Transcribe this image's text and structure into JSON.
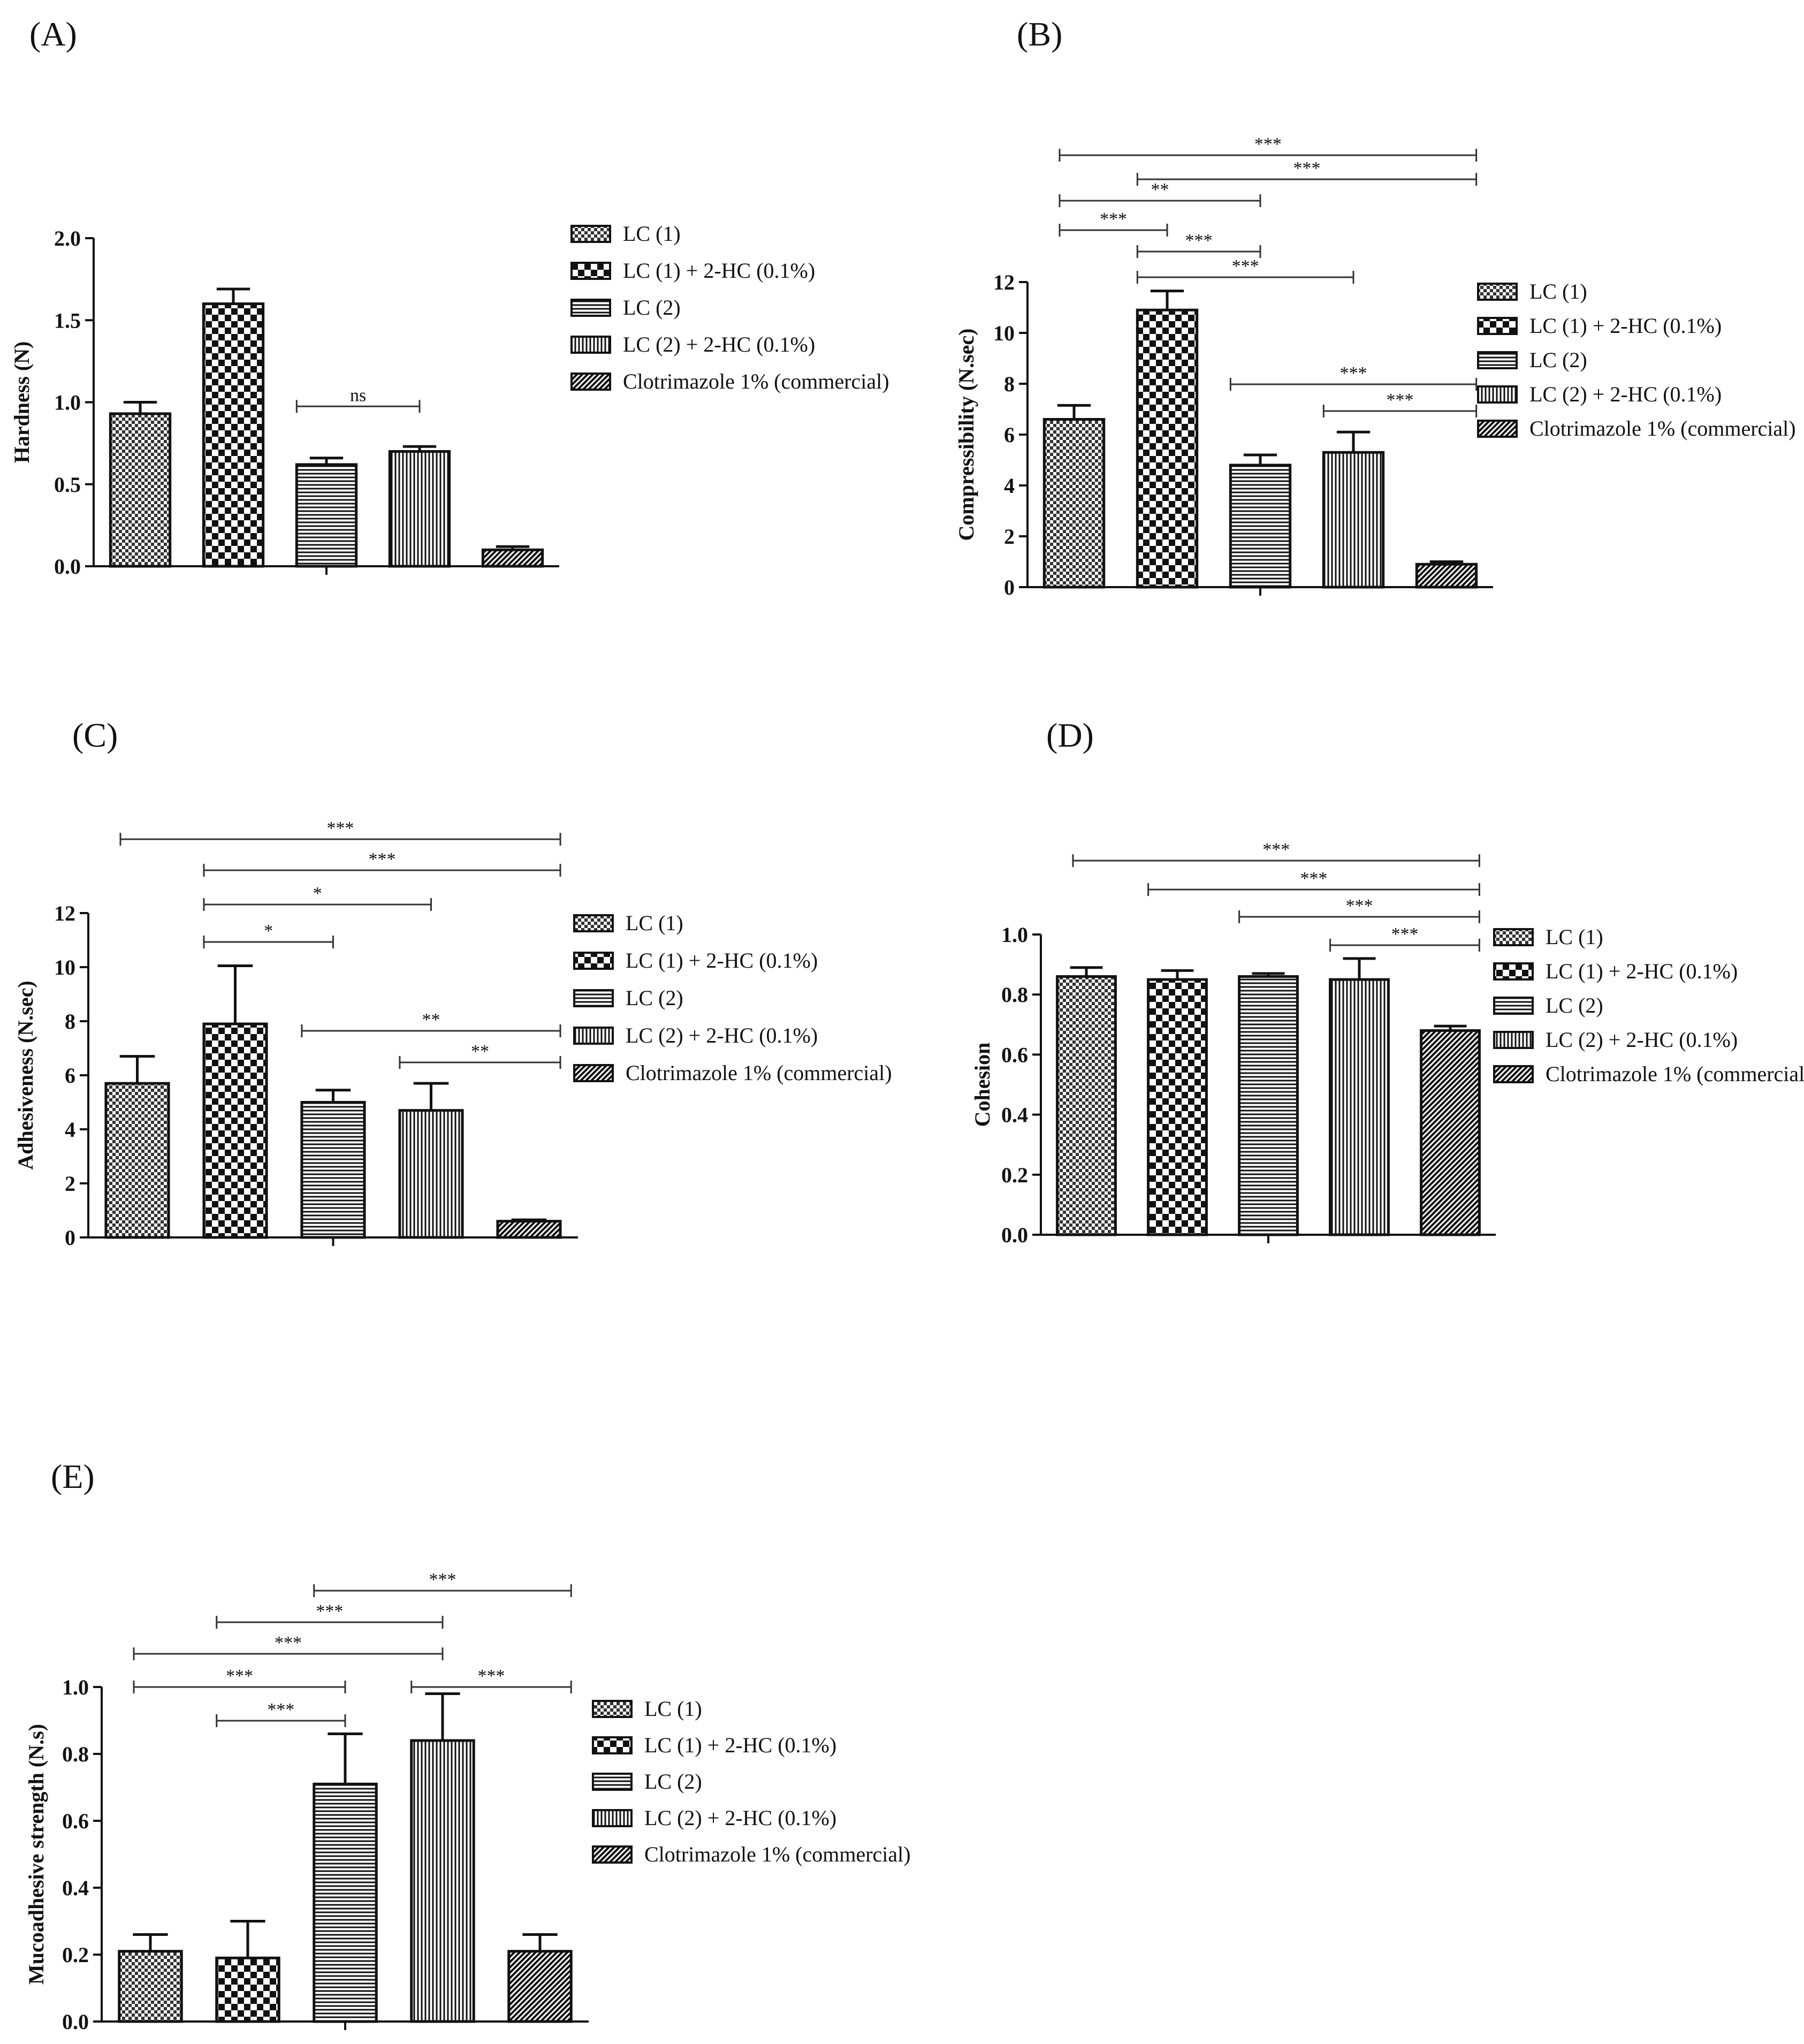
{
  "legend_items": [
    "LC (1)",
    "LC (1) + 2-HC (0.1%)",
    "LC (2)",
    "LC (2) + 2-HC (0.1%)",
    "Clotrimazole 1% (commercial)"
  ],
  "colors": {
    "ink": "#111111",
    "background": "#ffffff"
  },
  "chart_data": [
    {
      "panel": "(A)",
      "type": "bar",
      "ylabel": "Hardness (N)",
      "ylim": [
        0,
        2.0
      ],
      "yticks": [
        "0.0",
        "0.5",
        "1.0",
        "1.5",
        "2.0"
      ],
      "categories": [
        "LC (1)",
        "LC (1) + 2-HC (0.1%)",
        "LC (2)",
        "LC (2) + 2-HC (0.1%)",
        "Clotrimazole 1% (commercial)"
      ],
      "values": [
        0.93,
        1.6,
        0.62,
        0.7,
        0.1
      ],
      "errors": [
        0.07,
        0.09,
        0.04,
        0.03,
        0.02
      ],
      "significance": [
        {
          "from": 2,
          "to": 3,
          "label": "ns"
        }
      ]
    },
    {
      "panel": "(B)",
      "type": "bar",
      "ylabel": "Compressibility (N.sec)",
      "ylim": [
        0,
        12
      ],
      "yticks": [
        "0",
        "2",
        "4",
        "6",
        "8",
        "10",
        "12"
      ],
      "categories": [
        "LC (1)",
        "LC (1) + 2-HC (0.1%)",
        "LC (2)",
        "LC (2) + 2-HC (0.1%)",
        "Clotrimazole 1% (commercial)"
      ],
      "values": [
        6.6,
        10.9,
        4.8,
        5.3,
        0.9
      ],
      "errors": [
        0.55,
        0.75,
        0.4,
        0.8,
        0.1
      ],
      "significance": [
        {
          "from": 0,
          "to": 4,
          "label": "***"
        },
        {
          "from": 1,
          "to": 4,
          "label": "***"
        },
        {
          "from": 0,
          "to": 2,
          "label": "**"
        },
        {
          "from": 0,
          "to": 1,
          "label": "***"
        },
        {
          "from": 1,
          "to": 2,
          "label": "***"
        },
        {
          "from": 1,
          "to": 3,
          "label": "***"
        },
        {
          "from": 2,
          "to": 4,
          "label": "***"
        },
        {
          "from": 3,
          "to": 4,
          "label": "***"
        }
      ]
    },
    {
      "panel": "(C)",
      "type": "bar",
      "ylabel": "Adhesiveness (N.sec)",
      "ylim": [
        0,
        12
      ],
      "yticks": [
        "0",
        "2",
        "4",
        "6",
        "8",
        "10",
        "12"
      ],
      "categories": [
        "LC (1)",
        "LC (1) + 2-HC (0.1%)",
        "LC (2)",
        "LC (2) + 2-HC (0.1%)",
        "Clotrimazole 1% (commercial)"
      ],
      "values": [
        5.7,
        7.9,
        5.0,
        4.7,
        0.6
      ],
      "errors": [
        1.0,
        2.15,
        0.45,
        1.0,
        0.05
      ],
      "significance": [
        {
          "from": 0,
          "to": 4,
          "label": "***"
        },
        {
          "from": 1,
          "to": 4,
          "label": "***"
        },
        {
          "from": 1,
          "to": 3,
          "label": "*"
        },
        {
          "from": 1,
          "to": 2,
          "label": "*"
        },
        {
          "from": 2,
          "to": 4,
          "label": "**"
        },
        {
          "from": 3,
          "to": 4,
          "label": "**"
        }
      ]
    },
    {
      "panel": "(D)",
      "type": "bar",
      "ylabel": "Cohesion",
      "ylim": [
        0,
        1.0
      ],
      "yticks": [
        "0.0",
        "0.2",
        "0.4",
        "0.6",
        "0.8",
        "1.0"
      ],
      "categories": [
        "LC (1)",
        "LC (1) + 2-HC (0.1%)",
        "LC (2)",
        "LC (2) + 2-HC (0.1%)",
        "Clotrimazole 1% (commercial)"
      ],
      "values": [
        0.86,
        0.85,
        0.86,
        0.85,
        0.68
      ],
      "errors": [
        0.03,
        0.03,
        0.01,
        0.07,
        0.015
      ],
      "significance": [
        {
          "from": 0,
          "to": 4,
          "label": "***"
        },
        {
          "from": 1,
          "to": 4,
          "label": "***"
        },
        {
          "from": 2,
          "to": 4,
          "label": "***"
        },
        {
          "from": 3,
          "to": 4,
          "label": "***"
        }
      ]
    },
    {
      "panel": "(E)",
      "type": "bar",
      "ylabel": "Mucoadhesive strength (N.s)",
      "ylim": [
        0,
        1.0
      ],
      "yticks": [
        "0.0",
        "0.2",
        "0.4",
        "0.6",
        "0.8",
        "1.0"
      ],
      "categories": [
        "LC (1)",
        "LC (1) + 2-HC (0.1%)",
        "LC (2)",
        "LC (2) + 2-HC (0.1%)",
        "Clotrimazole 1% (commercial)"
      ],
      "values": [
        0.21,
        0.19,
        0.71,
        0.84,
        0.21
      ],
      "errors": [
        0.05,
        0.11,
        0.15,
        0.14,
        0.05
      ],
      "significance": [
        {
          "from": 2,
          "to": 4,
          "label": "***"
        },
        {
          "from": 1,
          "to": 3,
          "label": "***"
        },
        {
          "from": 0,
          "to": 3,
          "label": "***"
        },
        {
          "from": 0,
          "to": 2,
          "label": "***"
        },
        {
          "from": 3,
          "to": 4,
          "label": "***"
        },
        {
          "from": 1,
          "to": 2,
          "label": "***"
        }
      ]
    }
  ]
}
